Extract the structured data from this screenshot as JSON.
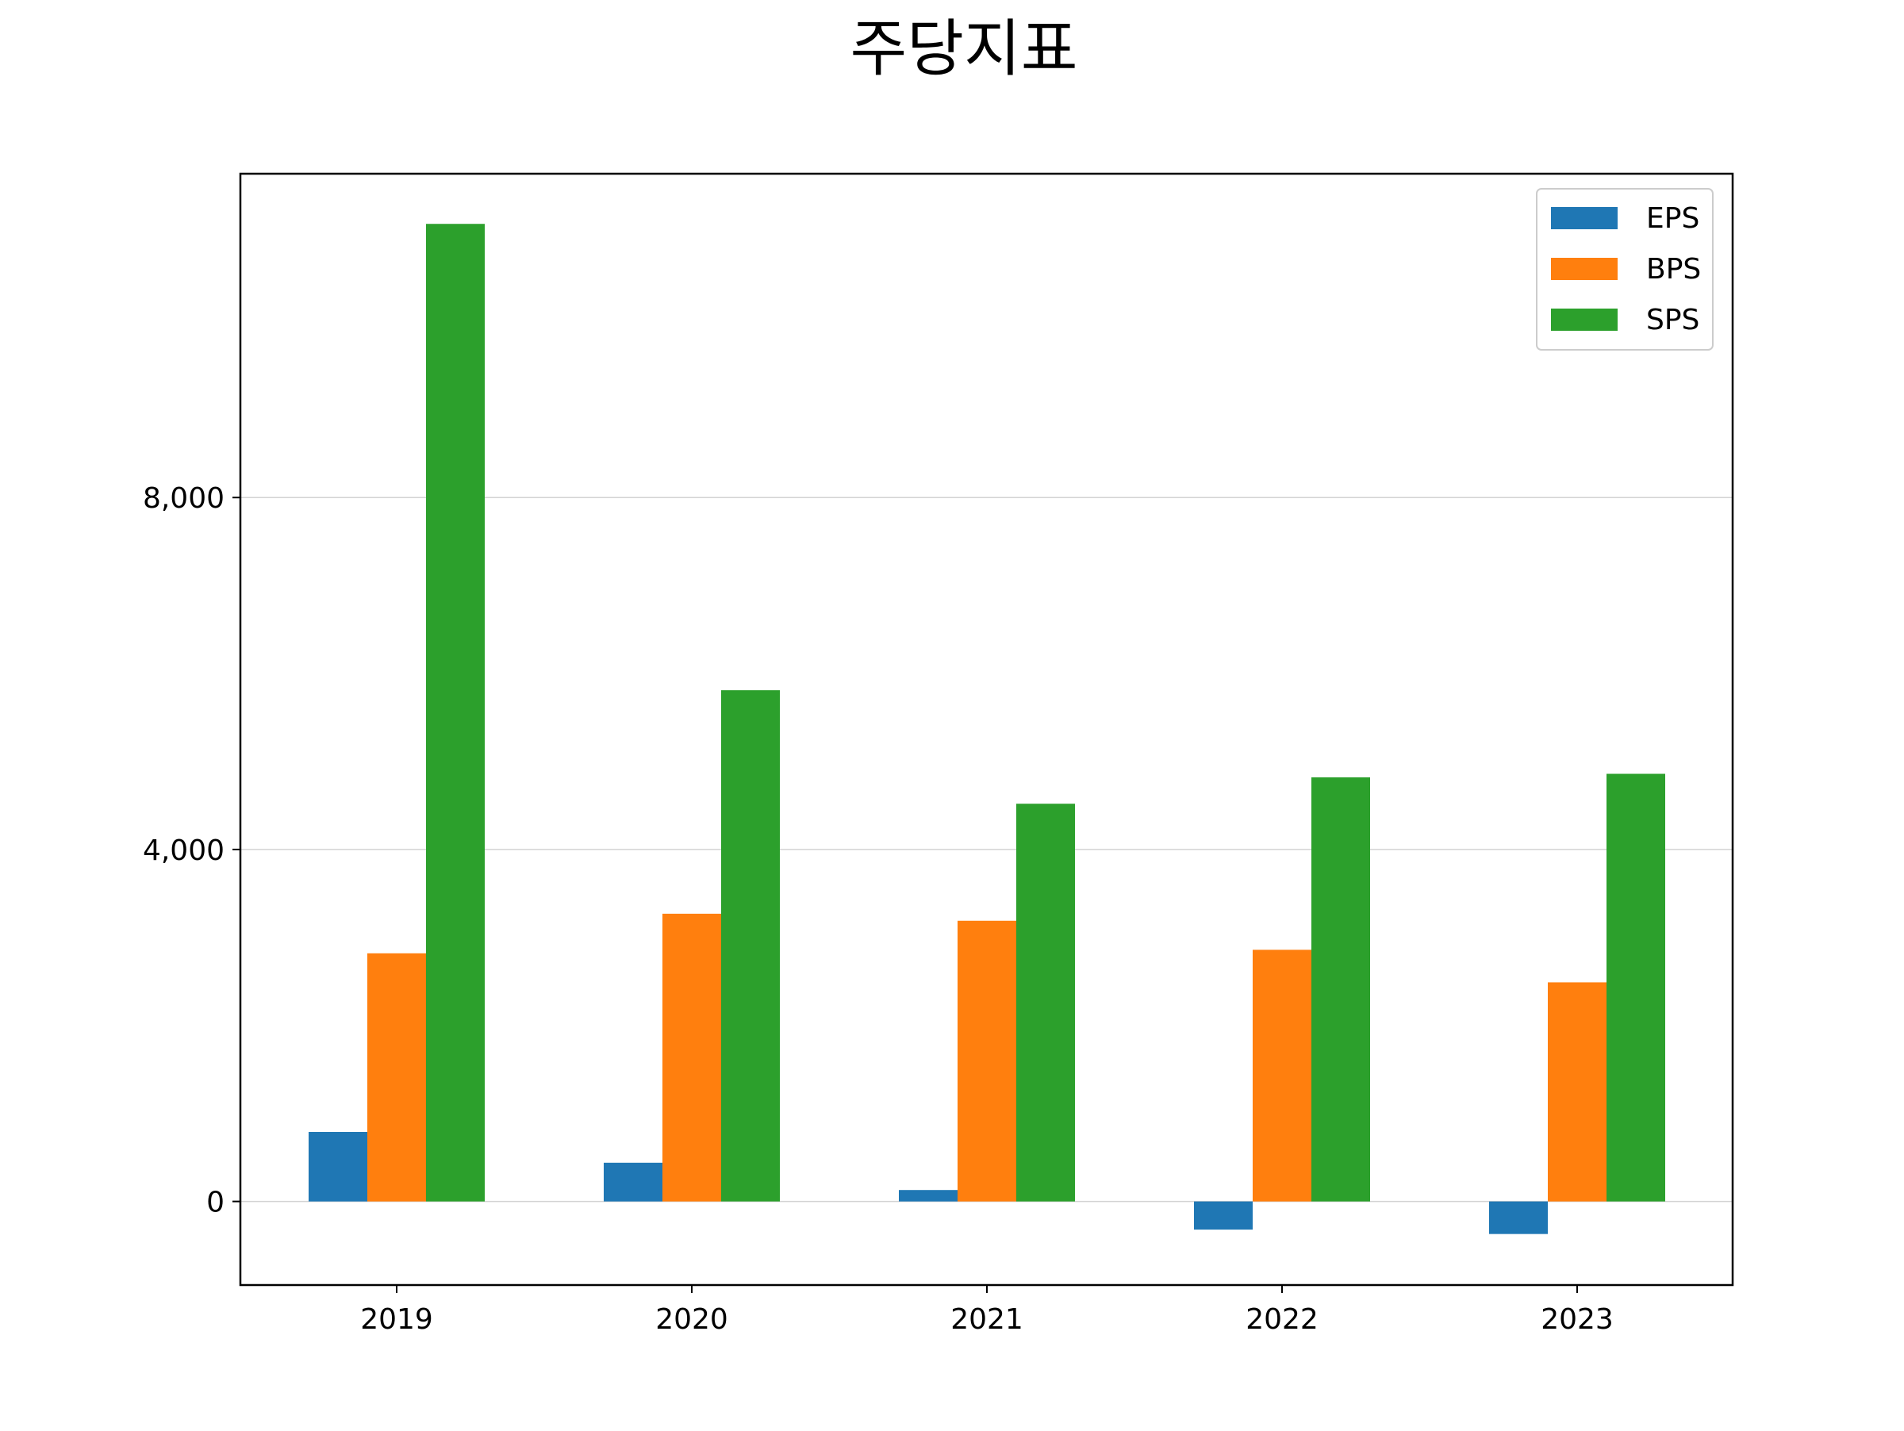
{
  "chart_data": {
    "type": "bar",
    "title": "주당지표",
    "xlabel": "",
    "ylabel": "",
    "categories": [
      "2019",
      "2020",
      "2021",
      "2022",
      "2023"
    ],
    "series": [
      {
        "name": "EPS",
        "color": "#1f77b4",
        "values": [
          790,
          440,
          130,
          -320,
          -370
        ]
      },
      {
        "name": "BPS",
        "color": "#ff7f0e",
        "values": [
          2820,
          3270,
          3190,
          2860,
          2490
        ]
      },
      {
        "name": "SPS",
        "color": "#2ca02c",
        "values": [
          11110,
          5810,
          4520,
          4820,
          4860
        ]
      }
    ],
    "ylim": [
      -950,
      11680
    ],
    "yticks": [
      0,
      4000,
      8000
    ],
    "ytick_labels": [
      "0",
      "4,000",
      "8,000"
    ],
    "grid": "horizontal",
    "legend": "top-right"
  }
}
